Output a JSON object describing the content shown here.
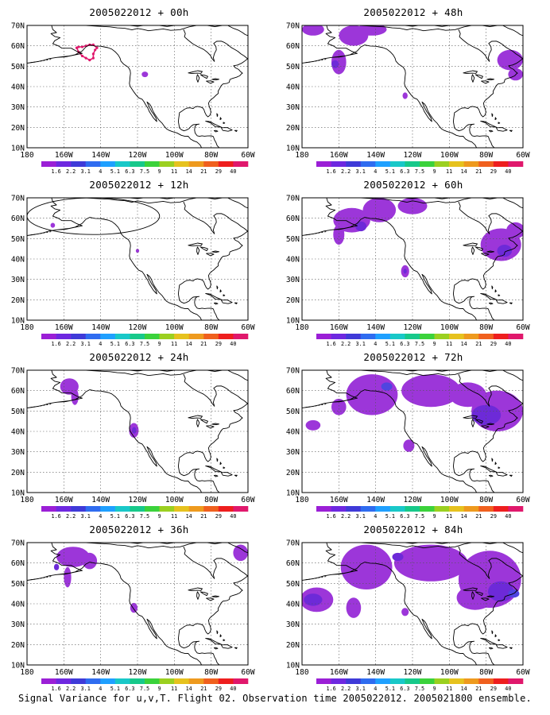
{
  "caption": "Signal Variance for u,v,T. Flight 02. Observation time 2005022012. 2005021800 ensemble.",
  "lat_labels": [
    "70N",
    "60N",
    "50N",
    "40N",
    "30N",
    "20N",
    "10N"
  ],
  "lon_labels": [
    "180",
    "160W",
    "140W",
    "120W",
    "100W",
    "80W",
    "60W"
  ],
  "colorbar": {
    "labels": [
      "1.6",
      "2.2",
      "3.1",
      "4",
      "5.1",
      "6.3",
      "7.5",
      "9",
      "11",
      "14",
      "21",
      "29",
      "40"
    ],
    "colors": [
      "#9b1fd6",
      "#6e28e0",
      "#3f3ad8",
      "#2f6cf0",
      "#1fa0ff",
      "#19c8c8",
      "#17c98a",
      "#3bd23b",
      "#9bd020",
      "#e6c21e",
      "#ee9a1e",
      "#f0601e",
      "#ee1e1e",
      "#e0186c"
    ]
  },
  "shading_colors": {
    "level1": "#9c36d9",
    "level2": "#6d2ad8",
    "level3": "#4f45e0",
    "level4": "#3f7ff0",
    "track": "#e0186c"
  },
  "panels": [
    {
      "title": "2005022012 + 00h",
      "level": 0
    },
    {
      "title": "2005022012 + 48h",
      "level": 48
    },
    {
      "title": "2005022012 + 12h",
      "level": 12
    },
    {
      "title": "2005022012 + 60h",
      "level": 60
    },
    {
      "title": "2005022012 + 24h",
      "level": 24
    },
    {
      "title": "2005022012 + 72h",
      "level": 72
    },
    {
      "title": "2005022012 + 36h",
      "level": 36
    },
    {
      "title": "2005022012 + 84h",
      "level": 84
    }
  ]
}
